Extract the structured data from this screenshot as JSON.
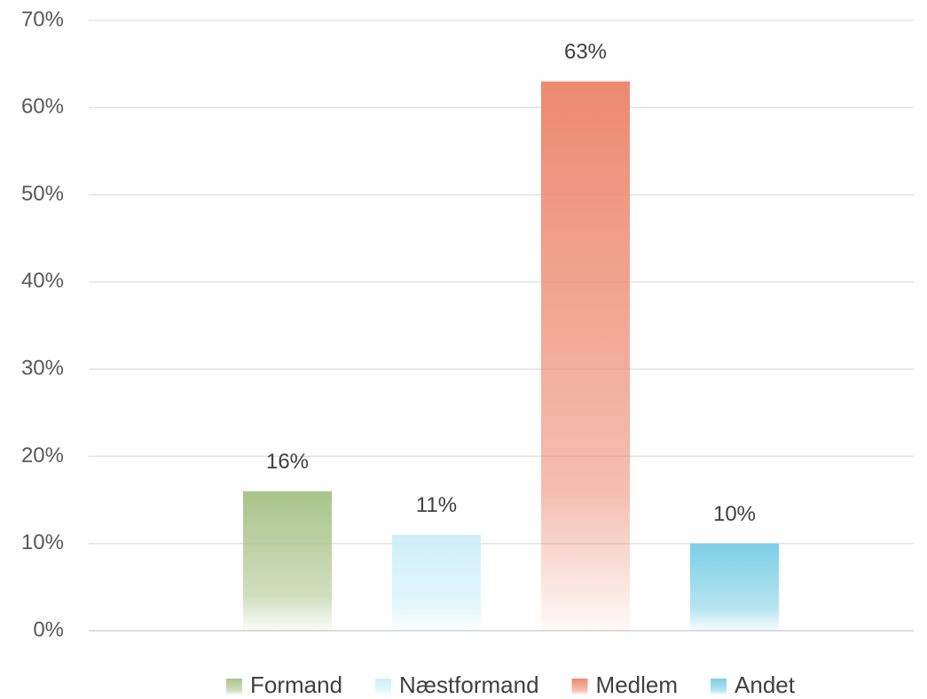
{
  "chart_data": {
    "type": "bar",
    "categories": [
      null
    ],
    "series": [
      {
        "name": "Formand",
        "color": "#a9c48a",
        "values": [
          16
        ],
        "value_labels": [
          "16%"
        ]
      },
      {
        "name": "Næstformand",
        "color": "#cdeff8",
        "values": [
          11
        ],
        "value_labels": [
          "11%"
        ]
      },
      {
        "name": "Medlem",
        "color": "#ec8a70",
        "values": [
          63
        ],
        "value_labels": [
          "63%"
        ]
      },
      {
        "name": "Andet",
        "color": "#7ccfe6",
        "values": [
          10
        ],
        "value_labels": [
          "10%"
        ]
      }
    ],
    "ylim": [
      0,
      70
    ],
    "yticks": [
      {
        "value": 0,
        "label": "0%"
      },
      {
        "value": 10,
        "label": "10%"
      },
      {
        "value": 20,
        "label": "20%"
      },
      {
        "value": 30,
        "label": "30%"
      },
      {
        "value": 40,
        "label": "40%"
      },
      {
        "value": 50,
        "label": "50%"
      },
      {
        "value": 60,
        "label": "60%"
      },
      {
        "value": 70,
        "label": "70%"
      }
    ],
    "grid": true,
    "legend": "bottom"
  }
}
